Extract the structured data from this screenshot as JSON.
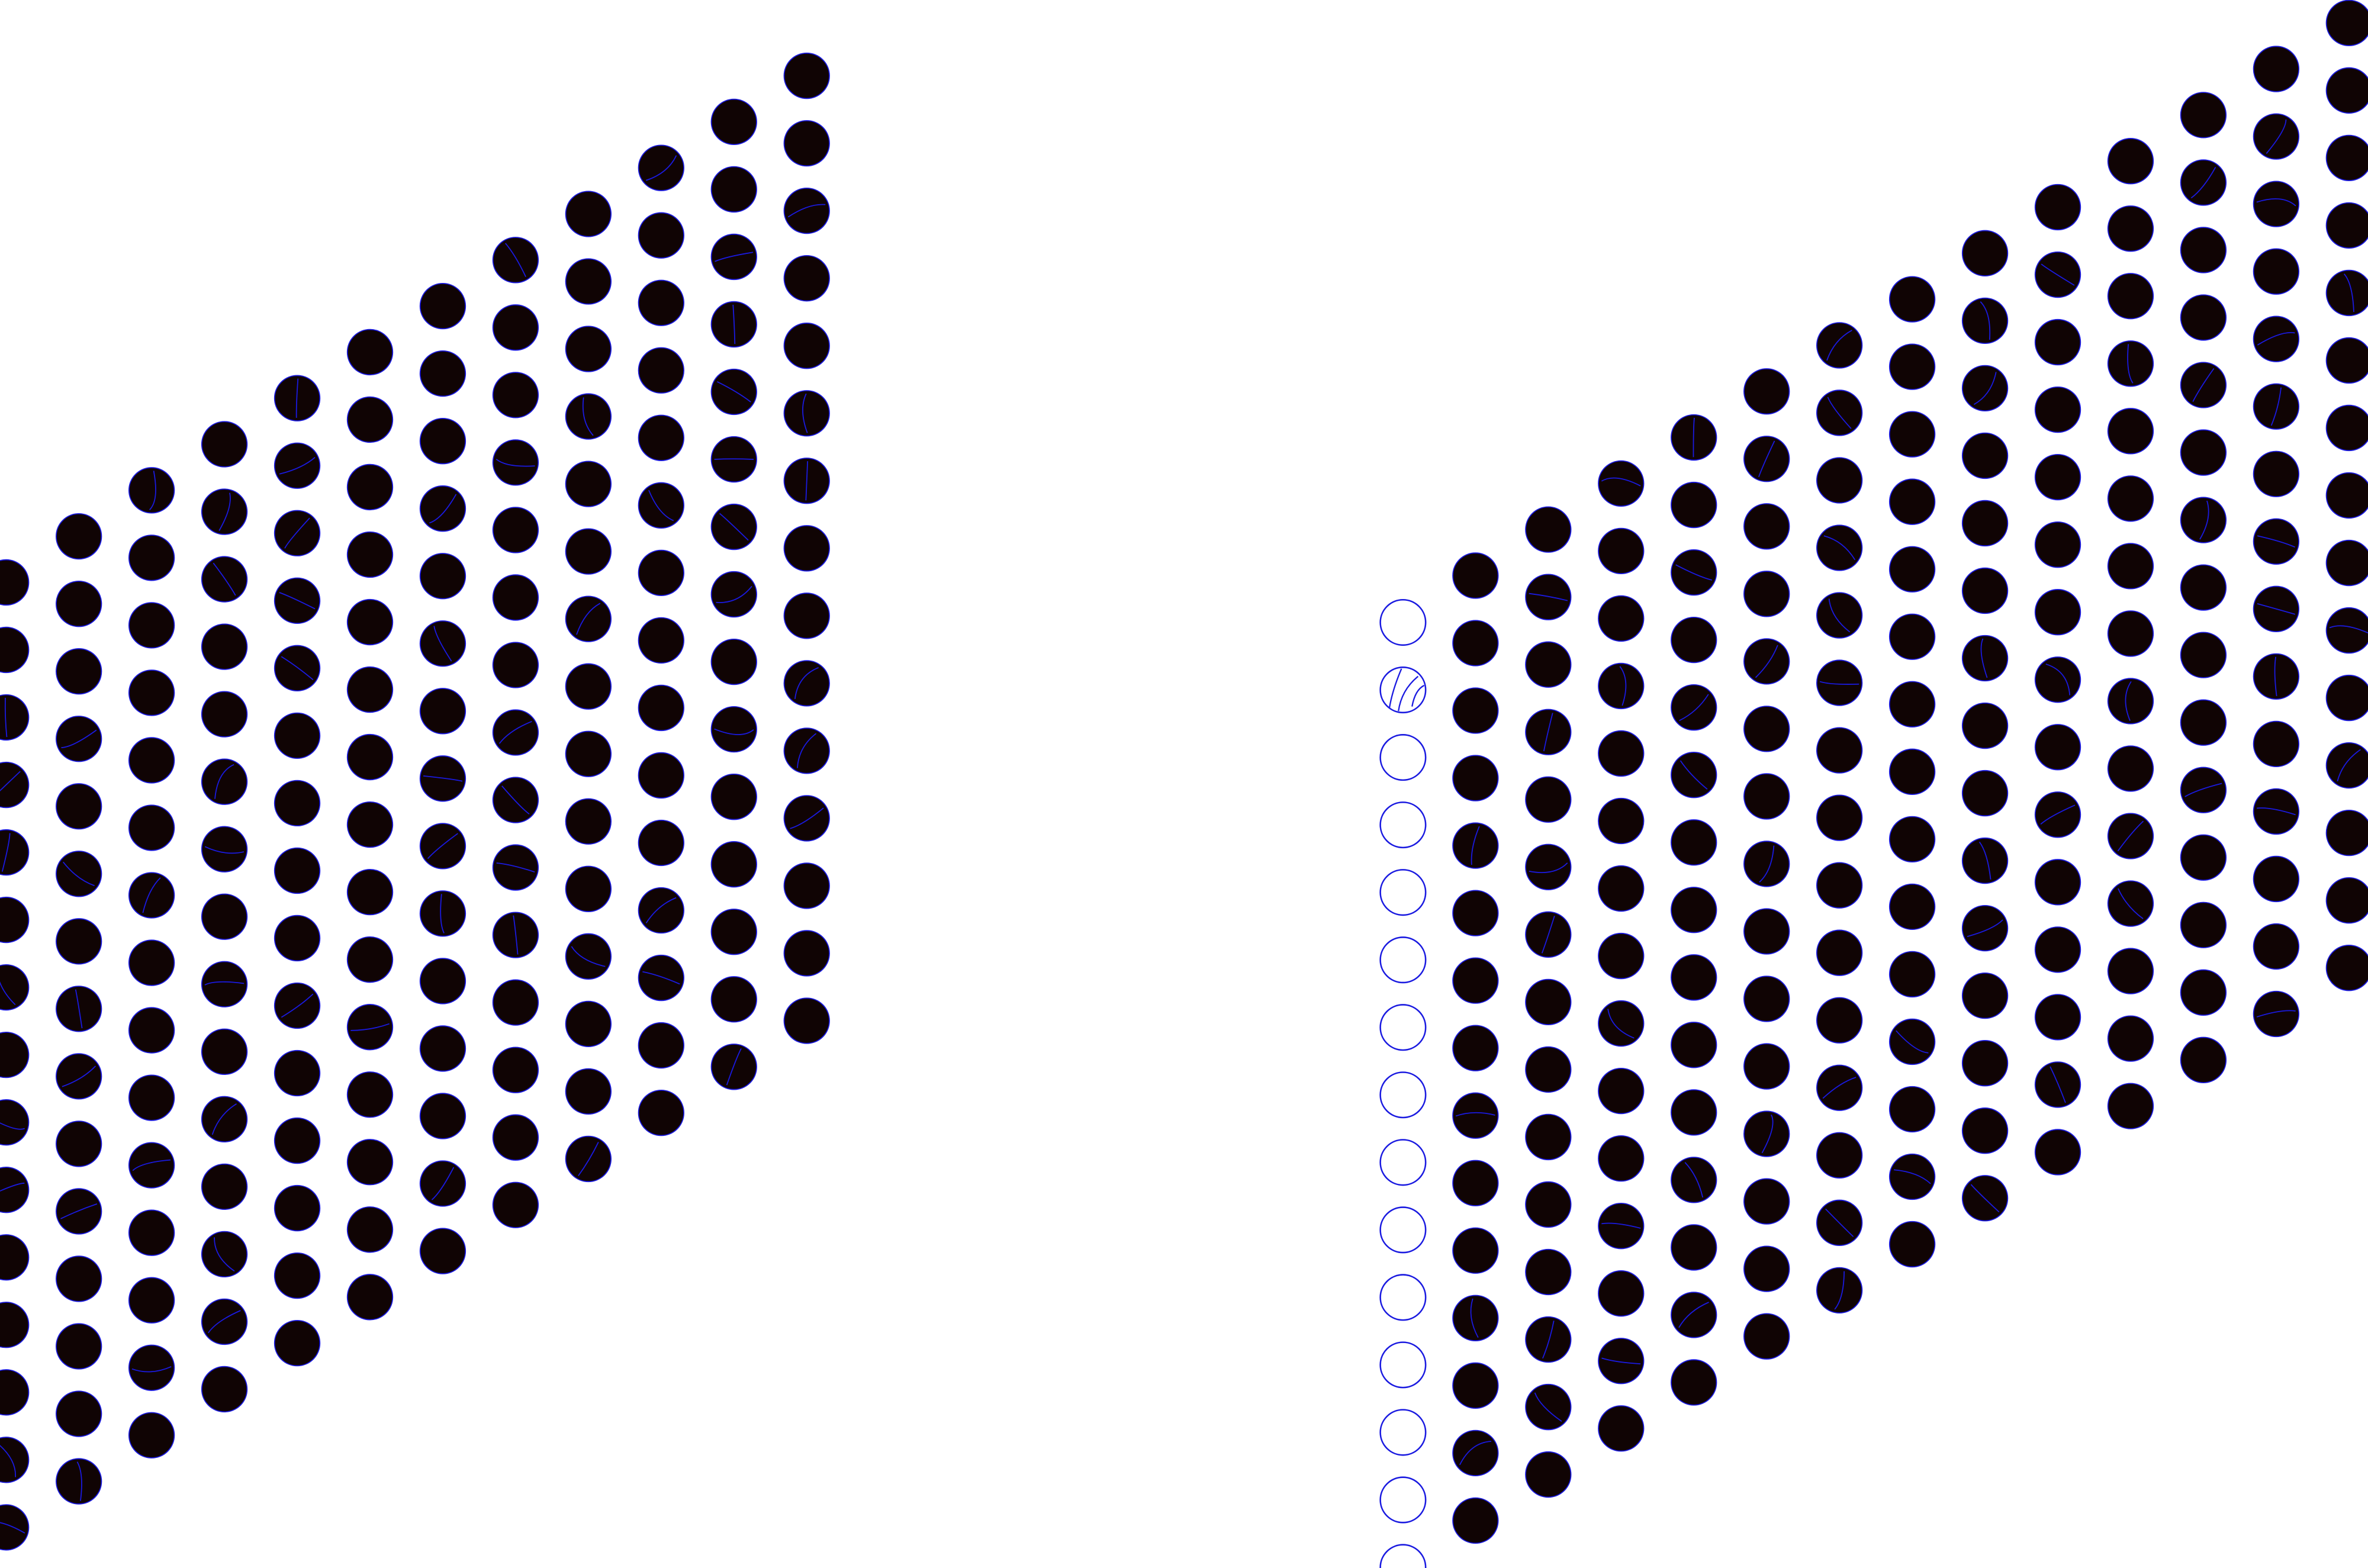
{
  "colors": {
    "background": "#ffffff",
    "dot_fill": "#100404",
    "dot_outline": "#1a1ae0",
    "ghost_outline": "#1a1ae0"
  },
  "panels": [
    {
      "name": "left-dot-lattice",
      "columns": 12,
      "dots_per_column": 15,
      "style": "filled"
    },
    {
      "name": "right-dot-lattice",
      "columns": 13,
      "dots_per_column": 15,
      "style": "filled"
    },
    {
      "name": "right-outline-column",
      "columns": 1,
      "dots_per_column": 15,
      "style": "outline"
    }
  ]
}
